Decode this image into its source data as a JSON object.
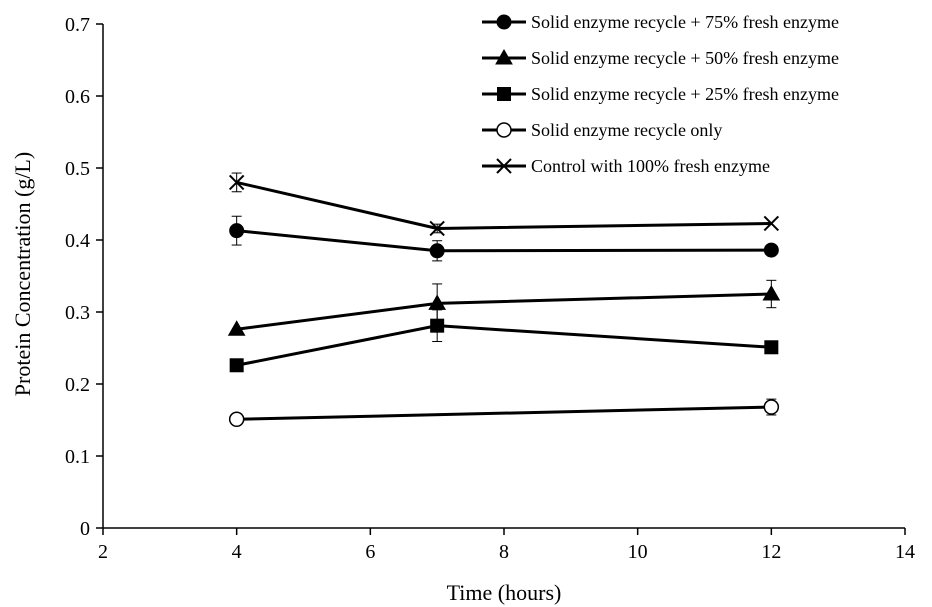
{
  "chart_data": {
    "type": "line",
    "xlabel": "Time (hours)",
    "ylabel": "Protein Concentration (g/L)",
    "xlim": [
      2,
      14
    ],
    "ylim": [
      0,
      0.7
    ],
    "xticks": [
      2,
      4,
      6,
      8,
      10,
      12,
      14
    ],
    "yticks": [
      0,
      0.1,
      0.2,
      0.3,
      0.4,
      0.5,
      0.6,
      0.7
    ],
    "grid": false,
    "legend_position": "top-right",
    "series": [
      {
        "name": "Solid enzyme recycle + 75% fresh enzyme",
        "marker": "circle-filled",
        "x": [
          4,
          7,
          12
        ],
        "y": [
          0.413,
          0.385,
          0.386
        ],
        "error": [
          0.02,
          0.014,
          0.0
        ]
      },
      {
        "name": "Solid enzyme recycle + 50% fresh enzyme",
        "marker": "triangle-filled",
        "x": [
          4,
          7,
          12
        ],
        "y": [
          0.276,
          0.312,
          0.325
        ],
        "error": [
          0.0,
          0.027,
          0.019
        ]
      },
      {
        "name": "Solid enzyme recycle + 25% fresh enzyme",
        "marker": "square-filled",
        "x": [
          4,
          7,
          12
        ],
        "y": [
          0.226,
          0.281,
          0.251
        ],
        "error": [
          0.0,
          0.022,
          0.0
        ]
      },
      {
        "name": "Solid enzyme recycle only",
        "marker": "circle-open",
        "x": [
          4,
          12
        ],
        "y": [
          0.151,
          0.168
        ],
        "error": [
          0.0,
          0.011
        ]
      },
      {
        "name": "Control with 100% fresh enzyme",
        "marker": "x",
        "x": [
          4,
          7,
          12
        ],
        "y": [
          0.48,
          0.416,
          0.423
        ],
        "error": [
          0.013,
          0.006,
          0.0
        ]
      }
    ]
  }
}
